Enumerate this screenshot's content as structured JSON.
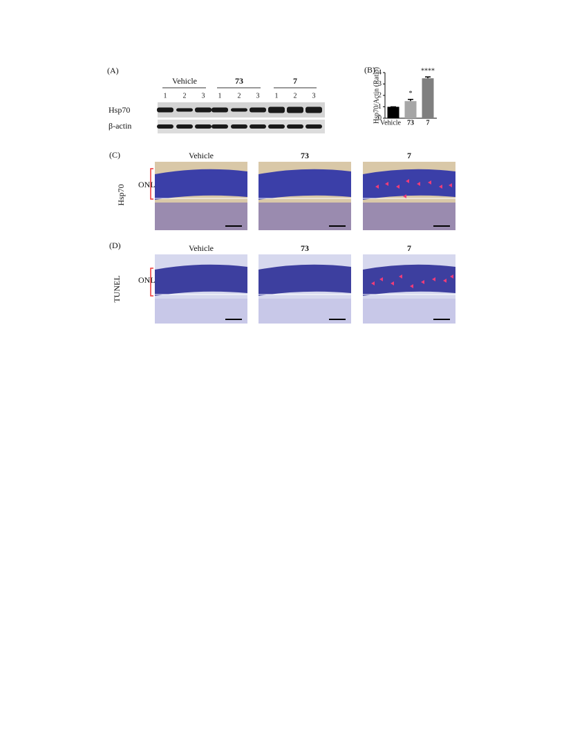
{
  "panel_a": {
    "label": "(A)",
    "groups": [
      {
        "name": "Vehicle",
        "lanes": [
          "1",
          "2",
          "3"
        ]
      },
      {
        "name": "73",
        "lanes": [
          "1",
          "2",
          "3"
        ]
      },
      {
        "name": "7",
        "lanes": [
          "1",
          "2",
          "3"
        ]
      }
    ],
    "rows": [
      "Hsp70",
      "β-actin"
    ]
  },
  "chart_data": {
    "type": "bar",
    "panel_label": "(B)",
    "y_label": "Hsp70/Actin (Ratio)",
    "categories": [
      "Vehicle",
      "73",
      "7"
    ],
    "values": [
      1.0,
      1.5,
      3.5
    ],
    "errors": [
      0,
      0.15,
      0.12
    ],
    "annotations": [
      null,
      "*",
      "****"
    ],
    "colors": [
      "#000000",
      "#a6a6a6",
      "#7f7f7f"
    ],
    "ylim": [
      0,
      4
    ],
    "yticks": [
      0,
      1,
      2,
      3,
      4
    ]
  },
  "panel_c": {
    "label": "(C)",
    "row_label": "Hsp70",
    "layer_label": "ONL",
    "columns": [
      "Vehicle",
      "73",
      "7"
    ]
  },
  "panel_d": {
    "label": "(D)",
    "row_label": "TUNEL",
    "layer_label": "ONL",
    "columns": [
      "Vehicle",
      "73",
      "7"
    ]
  }
}
